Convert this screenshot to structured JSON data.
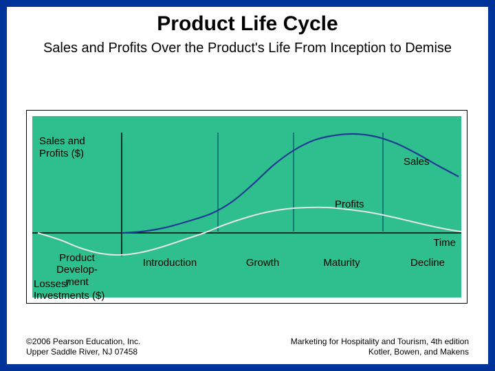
{
  "slide": {
    "title": "Product Life Cycle",
    "subtitle": "Sales and Profits Over the Product's Life From Inception to Demise",
    "background_color": "#ffffff",
    "border_color": "#003399",
    "title_fontsize": 30,
    "subtitle_fontsize": 20
  },
  "chart": {
    "type": "line",
    "panel_bg": "#2fbf8f",
    "panel_border": "#000000",
    "y_top_label_line1": "Sales and",
    "y_top_label_line2": "Profits ($)",
    "y_bottom_label_line1": "Losses/",
    "y_bottom_label_line2": "Investments ($)",
    "x_label": "Time",
    "stages": [
      "Product Develop- ment",
      "Introduction",
      "Growth",
      "Maturity",
      "Decline"
    ],
    "stage_labels": {
      "0": "Product\nDevelop-\nment",
      "1": "Introduction",
      "2": "Growth",
      "3": "Maturity",
      "4": "Decline"
    },
    "stage_boundaries_x": [
      130,
      270,
      380,
      510,
      624
    ],
    "axis_y": 170,
    "xlim": [
      0,
      624
    ],
    "ylim": [
      -50,
      110
    ],
    "divider_color": "#003366",
    "axis_color": "#000000",
    "series": {
      "sales": {
        "label": "Sales",
        "color": "#1f3a93",
        "width": 2.2,
        "points": [
          [
            130,
            170
          ],
          [
            160,
            168
          ],
          [
            190,
            163
          ],
          [
            220,
            155
          ],
          [
            260,
            142
          ],
          [
            290,
            125
          ],
          [
            320,
            100
          ],
          [
            350,
            72
          ],
          [
            380,
            50
          ],
          [
            410,
            35
          ],
          [
            440,
            28
          ],
          [
            470,
            26
          ],
          [
            500,
            30
          ],
          [
            530,
            40
          ],
          [
            560,
            55
          ],
          [
            590,
            72
          ],
          [
            620,
            88
          ]
        ]
      },
      "profits": {
        "label": "Profits",
        "color": "#e6e6e6",
        "width": 2.0,
        "points": [
          [
            8,
            170
          ],
          [
            40,
            180
          ],
          [
            70,
            192
          ],
          [
            100,
            200
          ],
          [
            130,
            202
          ],
          [
            160,
            198
          ],
          [
            190,
            190
          ],
          [
            220,
            180
          ],
          [
            250,
            170
          ],
          [
            280,
            158
          ],
          [
            310,
            148
          ],
          [
            340,
            140
          ],
          [
            370,
            135
          ],
          [
            400,
            133
          ],
          [
            430,
            133
          ],
          [
            460,
            136
          ],
          [
            490,
            140
          ],
          [
            520,
            146
          ],
          [
            550,
            153
          ],
          [
            580,
            160
          ],
          [
            610,
            166
          ],
          [
            624,
            168
          ]
        ]
      }
    },
    "curve_labels": {
      "sales": {
        "text": "Sales",
        "x": 540,
        "y": 58
      },
      "profits": {
        "text": "Profits",
        "x": 440,
        "y": 120
      }
    },
    "label_fontsize": 15
  },
  "footer": {
    "left_line1": "©2006 Pearson Education, Inc.",
    "left_line2": "Upper Saddle River, NJ 07458",
    "right_line1": "Marketing for Hospitality and Tourism, 4th edition",
    "right_line2": "Kotler, Bowen, and Makens",
    "fontsize": 12
  }
}
